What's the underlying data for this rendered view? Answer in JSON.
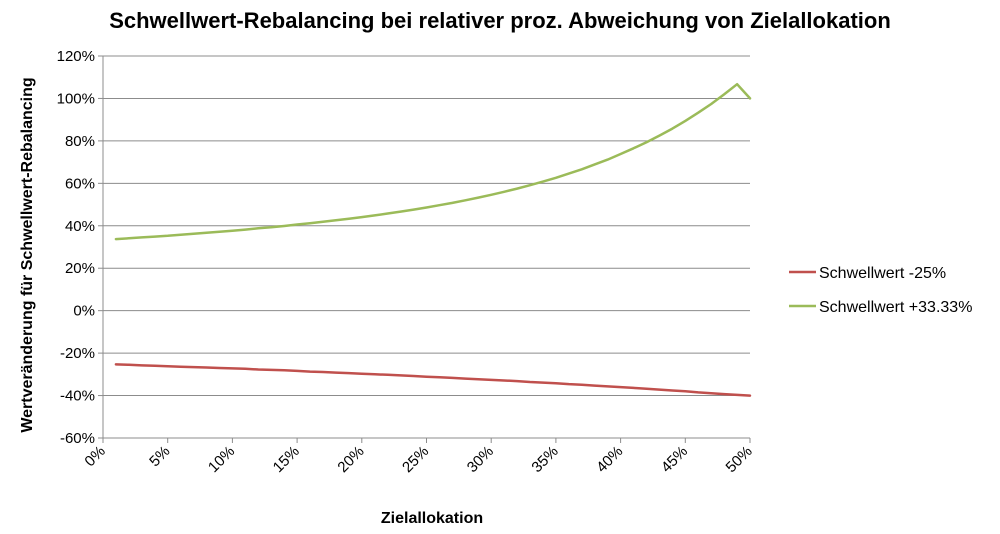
{
  "chart_data": {
    "type": "line",
    "title": "Schwellwert-Rebalancing bei relativer proz. Abweichung von Zielallokation",
    "xlabel": "Zielallokation",
    "ylabel": "Wertveränderung für Schwellwert-Rebalancing",
    "x": [
      1,
      2,
      3,
      4,
      5,
      6,
      7,
      8,
      9,
      10,
      11,
      12,
      13,
      14,
      15,
      16,
      17,
      18,
      19,
      20,
      21,
      22,
      23,
      24,
      25,
      26,
      27,
      28,
      29,
      30,
      31,
      32,
      33,
      34,
      35,
      36,
      37,
      38,
      39,
      40,
      41,
      42,
      43,
      44,
      45,
      46,
      47,
      48,
      49,
      50
    ],
    "x_tick_values": [
      0,
      5,
      10,
      15,
      20,
      25,
      30,
      35,
      40,
      45,
      50
    ],
    "x_tick_labels": [
      "0%",
      "5%",
      "10%",
      "15%",
      "20%",
      "25%",
      "30%",
      "35%",
      "40%",
      "45%",
      "50%"
    ],
    "xlim": [
      0,
      50
    ],
    "y_tick_values": [
      -60,
      -40,
      -20,
      0,
      20,
      40,
      60,
      80,
      100,
      120
    ],
    "y_tick_labels": [
      "-60%",
      "-40%",
      "-20%",
      "0%",
      "20%",
      "40%",
      "60%",
      "80%",
      "100%",
      "120%"
    ],
    "ylim": [
      -60,
      120
    ],
    "grid": true,
    "legend_position": "right",
    "series": [
      {
        "name": "Schwellwert -25%",
        "color": "#c0504d",
        "values": [
          -25.3,
          -25.5,
          -25.8,
          -26.0,
          -26.2,
          -26.4,
          -26.6,
          -26.8,
          -27.0,
          -27.2,
          -27.4,
          -27.7,
          -27.9,
          -28.1,
          -28.4,
          -28.7,
          -28.9,
          -29.2,
          -29.4,
          -29.7,
          -30.0,
          -30.2,
          -30.5,
          -30.8,
          -31.1,
          -31.4,
          -31.7,
          -32.0,
          -32.3,
          -32.6,
          -32.9,
          -33.2,
          -33.6,
          -33.9,
          -34.2,
          -34.6,
          -34.9,
          -35.3,
          -35.7,
          -36.0,
          -36.4,
          -36.8,
          -37.2,
          -37.6,
          -38.0,
          -38.5,
          -38.9,
          -39.3,
          -39.7,
          -40.0
        ]
      },
      {
        "name": "Schwellwert +33.33%",
        "color": "#9bbb59",
        "values": [
          33.7,
          34.1,
          34.5,
          34.9,
          35.3,
          35.8,
          36.2,
          36.7,
          37.2,
          37.7,
          38.2,
          38.8,
          39.3,
          39.9,
          40.6,
          41.2,
          41.9,
          42.6,
          43.3,
          44.1,
          44.9,
          45.8,
          46.7,
          47.6,
          48.6,
          49.7,
          50.8,
          52.0,
          53.3,
          54.6,
          56.0,
          57.5,
          59.1,
          60.8,
          62.6,
          64.6,
          66.6,
          68.9,
          71.2,
          73.8,
          76.5,
          79.4,
          82.5,
          85.8,
          89.4,
          93.3,
          97.4,
          101.9,
          106.7,
          100.0
        ]
      }
    ]
  }
}
